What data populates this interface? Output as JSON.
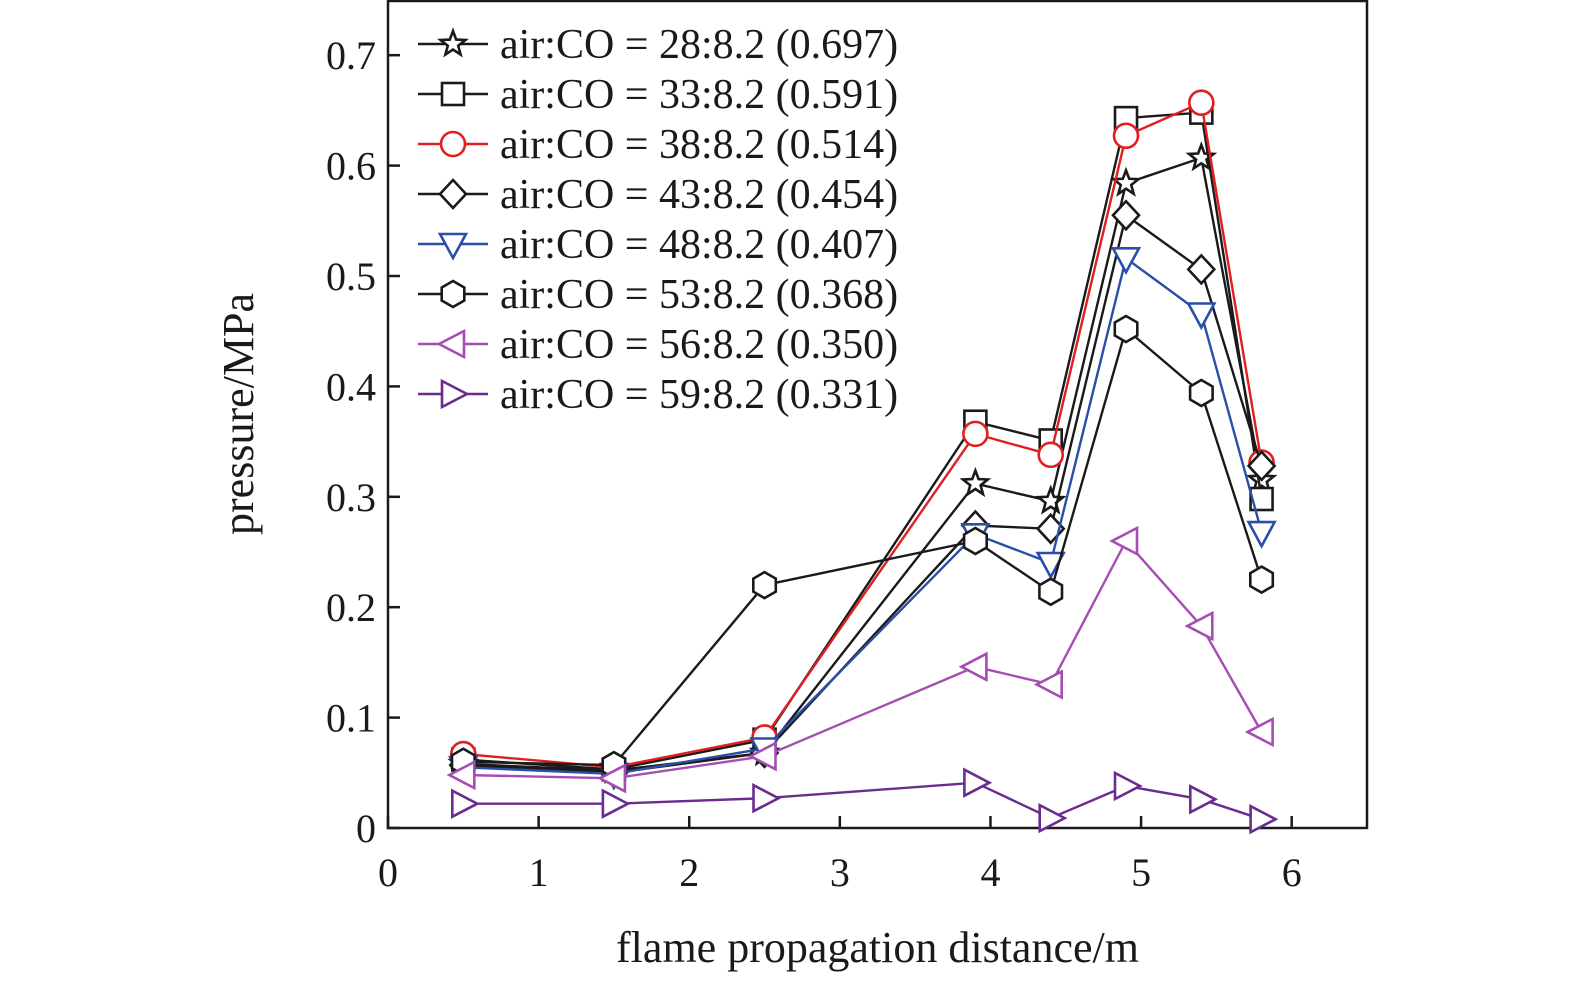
{
  "chart_data": {
    "type": "line",
    "title": "",
    "xlabel": "flame propagation distance/m",
    "ylabel": "pressure/MPa",
    "xlim": [
      0,
      6.5
    ],
    "ylim": [
      0,
      0.75
    ],
    "xticks": [
      0,
      1,
      2,
      3,
      4,
      5,
      6
    ],
    "xtick_labels": [
      "0",
      "1",
      "2",
      "3",
      "4",
      "5",
      "6"
    ],
    "yticks": [
      0,
      0.1,
      0.2,
      0.3,
      0.4,
      0.5,
      0.6,
      0.7
    ],
    "ytick_labels": [
      "0",
      "0.1",
      "0.2",
      "0.3",
      "0.4",
      "0.5",
      "0.6",
      "0.7"
    ],
    "grid": false,
    "legend_position": "top-left",
    "x": [
      0.5,
      1.5,
      2.5,
      3.9,
      4.4,
      4.9,
      5.4,
      5.8
    ],
    "series": [
      {
        "name": "air:CO = 28:8.2 (0.697)",
        "marker": "star",
        "color": "#1a1a1a",
        "values": [
          0.058,
          0.052,
          0.068,
          0.312,
          0.296,
          0.584,
          0.607,
          0.315
        ]
      },
      {
        "name": "air:CO = 33:8.2 (0.591)",
        "marker": "square",
        "color": "#1a1a1a",
        "values": [
          0.062,
          0.053,
          0.08,
          0.368,
          0.351,
          0.643,
          0.648,
          0.298
        ]
      },
      {
        "name": "air:CO = 38:8.2 (0.514)",
        "marker": "circle",
        "color": "#e02020",
        "values": [
          0.067,
          0.055,
          0.082,
          0.357,
          0.338,
          0.627,
          0.657,
          0.331
        ]
      },
      {
        "name": "air:CO = 43:8.2 (0.454)",
        "marker": "diamond",
        "color": "#1a1a1a",
        "values": [
          0.057,
          0.05,
          0.068,
          0.274,
          0.271,
          0.555,
          0.506,
          0.328
        ]
      },
      {
        "name": "air:CO = 48:8.2 (0.407)",
        "marker": "triangle-down",
        "color": "#2b4ea8",
        "values": [
          0.055,
          0.049,
          0.072,
          0.266,
          0.24,
          0.516,
          0.466,
          0.268
        ]
      },
      {
        "name": "air:CO = 53:8.2 (0.368)",
        "marker": "hexagon",
        "color": "#1a1a1a",
        "values": [
          0.06,
          0.057,
          0.22,
          0.26,
          0.214,
          0.452,
          0.394,
          0.225
        ]
      },
      {
        "name": "air:CO = 56:8.2 (0.350)",
        "marker": "triangle-left",
        "color": "#a64db3",
        "values": [
          0.048,
          0.045,
          0.065,
          0.146,
          0.13,
          0.26,
          0.183,
          0.087
        ]
      },
      {
        "name": "air:CO = 59:8.2 (0.331)",
        "marker": "triangle-right",
        "color": "#6a2d8f",
        "values": [
          0.022,
          0.022,
          0.027,
          0.041,
          0.009,
          0.038,
          0.026,
          0.008
        ]
      }
    ]
  }
}
